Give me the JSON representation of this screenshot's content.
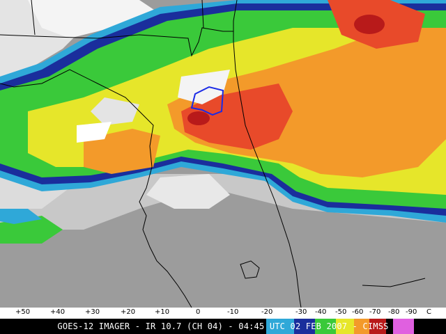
{
  "image": {
    "satellite_view": "GOES-12 infrared satellite image over Florida and the southeastern US Gulf coast",
    "colors": {
      "warm_gray": "#9a9a9a",
      "light_gray": "#d0d0d0",
      "white": "#ffffff",
      "cyan": "#2fa8d8",
      "blue": "#1a2e9c",
      "green": "#3ac93a",
      "yellow": "#e6e62a",
      "orange": "#f39a2a",
      "red_orange": "#e84a2a",
      "deep_red": "#b81a1a",
      "black_outline": "#000000",
      "county_outline": "#1a2ae6"
    }
  },
  "scale": {
    "ticks": [
      "+50",
      "+40",
      "+30",
      "+20",
      "+10",
      "0",
      "-10",
      "-20",
      "-30",
      "-40",
      "-50",
      "-60",
      "-70",
      "-80",
      "-90"
    ],
    "unit": "C"
  },
  "caption": {
    "text": "GOES-12 IMAGER - IR 10.7 (CH 04) - 04:45 UTC 02 FEB 2007 - CIMSS"
  }
}
